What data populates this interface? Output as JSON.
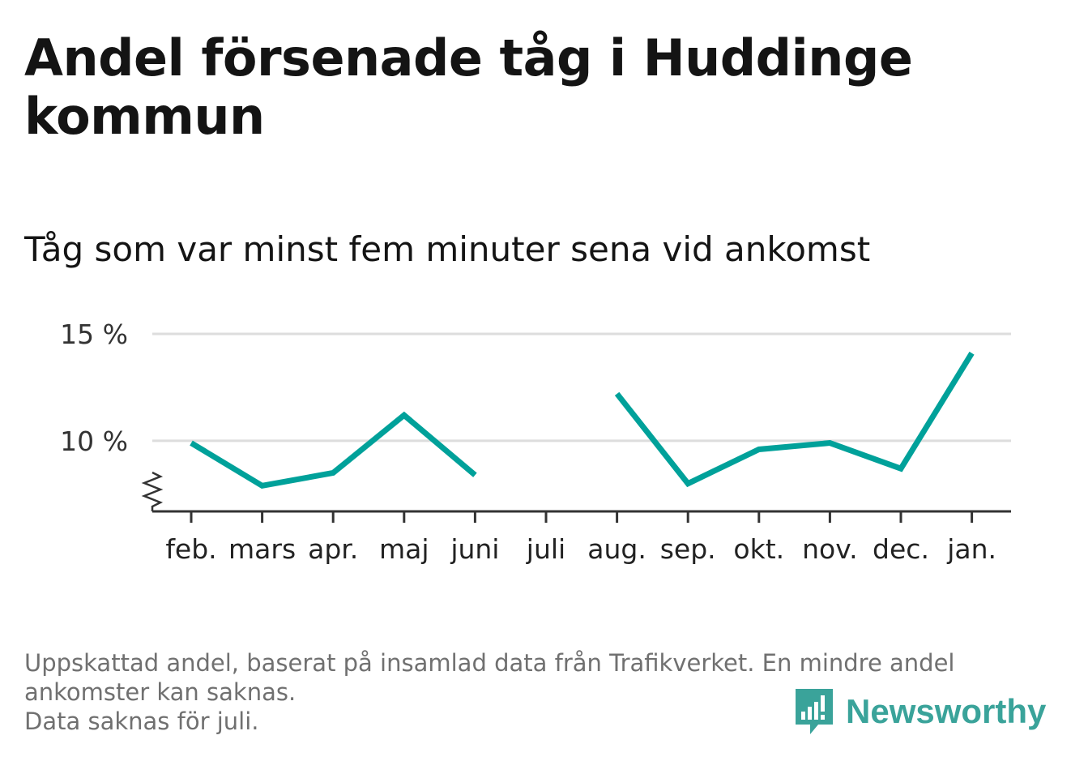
{
  "title": "Andel försenade tåg i Huddinge kommun",
  "subtitle": "Tåg som var minst fem minuter sena vid ankomst",
  "footnote": {
    "line1": "Uppskattad andel, baserat på insamlad data från Trafikverket. En mindre andel",
    "line2": "ankomster kan saknas.",
    "line3": "Data saknas för juli."
  },
  "brand": {
    "name": "Newsworthy",
    "icon": "bar-chart-speech-bubble-icon",
    "color": "#3aa39a"
  },
  "colors": {
    "line": "#00a19a",
    "grid": "#dddddd",
    "axis": "#333333"
  },
  "chart_data": {
    "type": "line",
    "categories": [
      "feb.",
      "mars",
      "apr.",
      "maj",
      "juni",
      "juli",
      "aug.",
      "sep.",
      "okt.",
      "nov.",
      "dec.",
      "jan."
    ],
    "series": [
      {
        "values": [
          9.9,
          7.9,
          8.5,
          11.2,
          8.4,
          null,
          12.2,
          8.0,
          9.6,
          9.9,
          8.7,
          14.1
        ]
      }
    ],
    "yticks": [
      10,
      15
    ],
    "ytick_labels": [
      "10 %",
      "15 %"
    ],
    "ylim": [
      6.7,
      15
    ],
    "axis_break": true,
    "grid": true,
    "legend": "none"
  }
}
